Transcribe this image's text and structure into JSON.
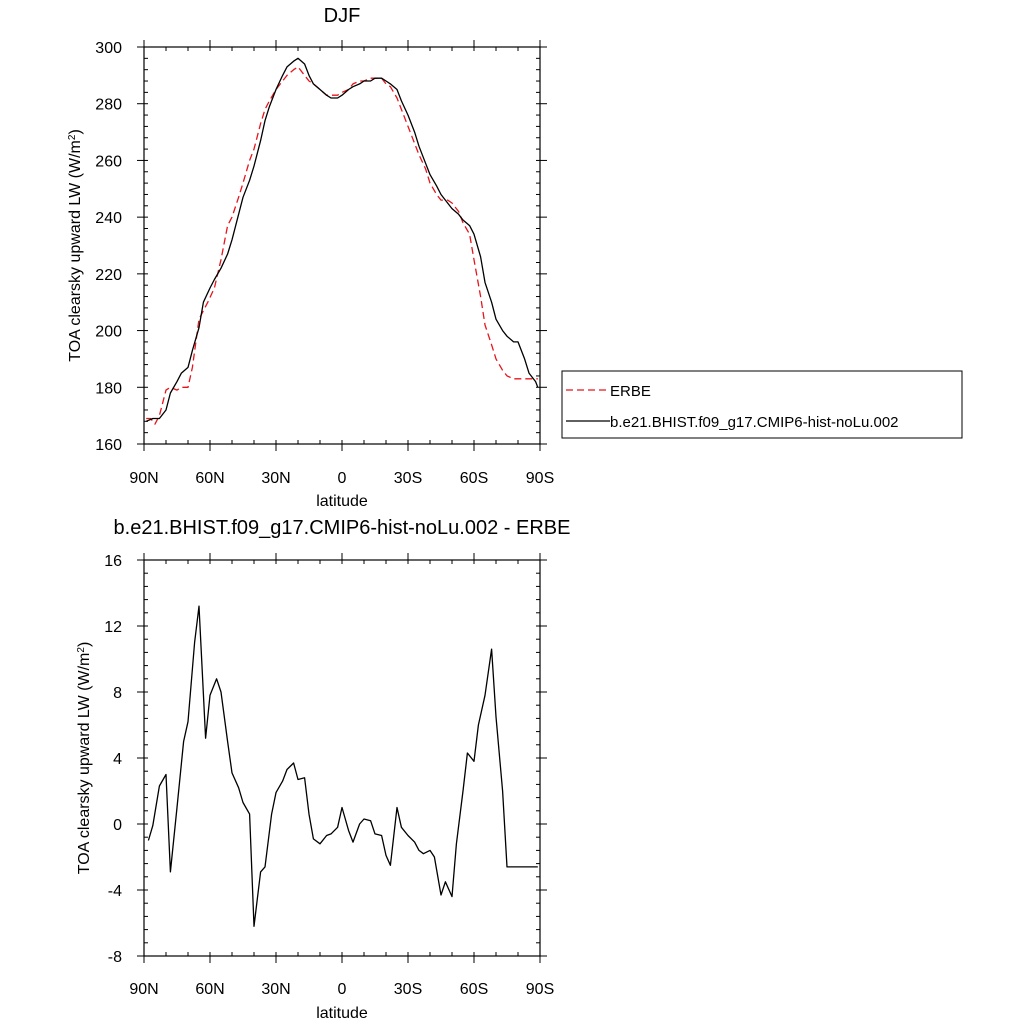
{
  "chart_data": [
    {
      "type": "line",
      "title": "DJF",
      "xlabel": "latitude",
      "ylabel": "TOA clearsky upward LW (W/m²)",
      "xlim": [
        -90,
        90
      ],
      "ylim": [
        160,
        300
      ],
      "xticks": [
        {
          "value": -90,
          "label": "90N"
        },
        {
          "value": -60,
          "label": "60N"
        },
        {
          "value": -30,
          "label": "30N"
        },
        {
          "value": 0,
          "label": "0"
        },
        {
          "value": 30,
          "label": "30S"
        },
        {
          "value": 60,
          "label": "60S"
        },
        {
          "value": 90,
          "label": "90S"
        }
      ],
      "yticks": [
        160,
        180,
        200,
        220,
        240,
        260,
        280,
        300
      ],
      "legend": "right",
      "series": [
        {
          "name": "ERBE",
          "color": "#e8141c",
          "dash": "dashed",
          "x": [
            -89,
            -87,
            -85,
            -83,
            -80,
            -78,
            -75,
            -73,
            -70,
            -68,
            -65,
            -63,
            -61,
            -58,
            -55,
            -52,
            -50,
            -47,
            -45,
            -42,
            -40,
            -37,
            -35,
            -33,
            -30,
            -27,
            -25,
            -22,
            -20,
            -17,
            -15,
            -13,
            -10,
            -7,
            -5,
            -2,
            0,
            3,
            5,
            8,
            10,
            13,
            15,
            18,
            20,
            22,
            25,
            27,
            30,
            33,
            35,
            38,
            40,
            43,
            45,
            48,
            50,
            53,
            55,
            58,
            60,
            63,
            65,
            68,
            70,
            73,
            75,
            78,
            80,
            83,
            85,
            88,
            89
          ],
          "y": [
            169,
            169,
            167,
            170,
            179,
            180,
            179,
            180,
            180,
            187,
            204,
            207,
            210,
            215,
            225,
            237,
            240,
            247,
            252,
            260,
            264,
            273,
            278,
            281,
            285,
            288,
            290,
            292,
            293,
            290,
            288,
            287,
            285,
            283,
            283,
            283,
            284,
            285,
            287,
            288,
            288,
            289,
            289,
            289,
            287,
            286,
            282,
            278,
            272,
            266,
            262,
            257,
            252,
            248,
            246,
            246,
            245,
            242,
            238,
            234,
            225,
            212,
            202,
            195,
            190,
            186,
            184,
            183,
            183,
            183,
            183,
            183,
            183
          ]
        },
        {
          "name": "b.e21.BHIST.f09_g17.CMIP6-hist-noLu.002",
          "color": "#000000",
          "dash": "solid",
          "x": [
            -89,
            -86,
            -83,
            -80,
            -78,
            -75,
            -73,
            -70,
            -68,
            -65,
            -63,
            -60,
            -58,
            -55,
            -52,
            -50,
            -47,
            -45,
            -42,
            -40,
            -37,
            -35,
            -33,
            -30,
            -27,
            -25,
            -22,
            -20,
            -17,
            -15,
            -13,
            -10,
            -7,
            -5,
            -2,
            0,
            3,
            5,
            8,
            10,
            13,
            15,
            18,
            20,
            22,
            25,
            27,
            30,
            33,
            35,
            38,
            40,
            43,
            45,
            48,
            50,
            53,
            55,
            58,
            60,
            63,
            65,
            68,
            70,
            73,
            75,
            78,
            80,
            83,
            85,
            88,
            89
          ],
          "y": [
            168,
            169,
            169,
            172,
            178,
            182,
            185,
            187,
            193,
            201,
            210,
            215,
            218,
            222,
            227,
            232,
            241,
            247,
            253,
            258,
            267,
            274,
            279,
            285,
            290,
            293,
            295,
            296,
            294,
            290,
            287,
            285,
            283,
            282,
            282,
            283,
            285,
            286,
            287,
            288,
            288,
            289,
            289,
            288,
            287,
            285,
            281,
            276,
            270,
            265,
            259,
            255,
            251,
            248,
            245,
            243,
            241,
            239,
            237,
            234,
            226,
            217,
            210,
            204,
            200,
            198,
            196,
            196,
            190,
            185,
            182,
            180
          ]
        }
      ]
    },
    {
      "type": "line",
      "title": "b.e21.BHIST.f09_g17.CMIP6-hist-noLu.002 - ERBE",
      "xlabel": "latitude",
      "ylabel": "TOA clearsky upward LW (W/m²)",
      "xlim": [
        -90,
        90
      ],
      "ylim": [
        -8,
        16
      ],
      "xticks": [
        {
          "value": -90,
          "label": "90N"
        },
        {
          "value": -60,
          "label": "60N"
        },
        {
          "value": -30,
          "label": "30N"
        },
        {
          "value": 0,
          "label": "0"
        },
        {
          "value": 30,
          "label": "30S"
        },
        {
          "value": 60,
          "label": "60S"
        },
        {
          "value": 90,
          "label": "90S"
        }
      ],
      "yticks": [
        -8,
        -4,
        0,
        4,
        8,
        12,
        16
      ],
      "series": [
        {
          "color": "#000000",
          "dash": "solid",
          "x": [
            -88,
            -86,
            -83,
            -80,
            -78,
            -75,
            -72,
            -70,
            -67,
            -65,
            -62,
            -60,
            -57,
            -55,
            -52,
            -50,
            -47,
            -45,
            -42,
            -40,
            -37,
            -35,
            -32,
            -30,
            -27,
            -25,
            -22,
            -20,
            -17,
            -15,
            -13,
            -10,
            -7,
            -5,
            -2,
            0,
            3,
            5,
            8,
            10,
            13,
            15,
            18,
            20,
            22,
            25,
            27,
            30,
            33,
            35,
            37,
            40,
            42,
            45,
            47,
            50,
            52,
            55,
            57,
            60,
            62,
            65,
            68,
            70,
            73,
            75,
            77,
            80,
            82,
            85,
            87,
            89
          ],
          "y": [
            -1.0,
            -0.1,
            2.3,
            3.0,
            -2.9,
            1.0,
            5.0,
            6.2,
            11.0,
            13.2,
            5.2,
            7.8,
            8.8,
            8.0,
            5.0,
            3.1,
            2.2,
            1.3,
            0.6,
            -6.2,
            -2.9,
            -2.6,
            0.6,
            1.9,
            2.6,
            3.3,
            3.7,
            2.7,
            2.8,
            0.6,
            -0.9,
            -1.2,
            -0.7,
            -0.6,
            -0.2,
            1.0,
            -0.4,
            -1.1,
            0.0,
            0.3,
            0.2,
            -0.6,
            -0.7,
            -1.9,
            -2.5,
            1.0,
            -0.2,
            -0.7,
            -1.1,
            -1.6,
            -1.8,
            -1.6,
            -2.0,
            -4.3,
            -3.5,
            -4.4,
            -1.2,
            2.0,
            4.3,
            3.8,
            6.0,
            7.8,
            10.6,
            6.5,
            2.0,
            -2.6,
            -2.6,
            -2.6,
            -2.6,
            -2.6,
            -2.6,
            -2.6
          ]
        }
      ]
    }
  ]
}
